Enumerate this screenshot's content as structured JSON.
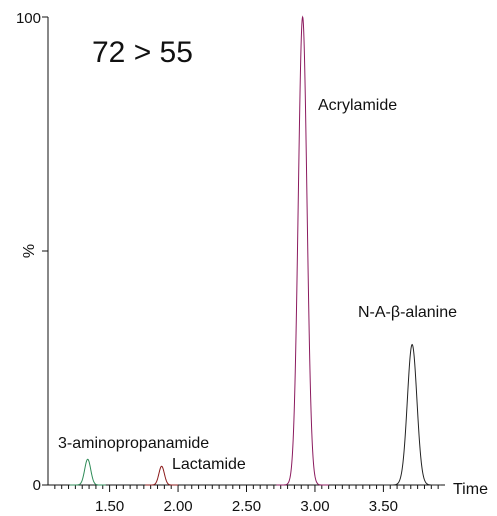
{
  "chart_data": {
    "type": "line",
    "title": "72 > 55",
    "xlabel": "Time",
    "ylabel": "%",
    "xlim": [
      1.05,
      3.95
    ],
    "ylim": [
      0,
      100
    ],
    "x_ticks": [
      1.5,
      2.0,
      2.5,
      3.0,
      3.5
    ],
    "x_tick_labels": [
      "1.50",
      "2.00",
      "2.50",
      "3.00",
      "3.50"
    ],
    "y_ticks": [
      0,
      50,
      100
    ],
    "y_tick_labels": [
      "0",
      "%",
      "100"
    ],
    "grid": false,
    "peaks": [
      {
        "label": "3-aminopropanamide",
        "rt": 1.34,
        "height": 5.5,
        "width": 0.022,
        "color": "#2e8b57"
      },
      {
        "label": "Lactamide",
        "rt": 1.88,
        "height": 4.0,
        "width": 0.02,
        "color": "#8b1a1a"
      },
      {
        "label": "Acrylamide",
        "rt": 2.91,
        "height": 100,
        "width": 0.032,
        "color": "#8b1a5e"
      },
      {
        "label": "N-A-β-alanine",
        "rt": 3.71,
        "height": 30,
        "width": 0.035,
        "color": "#222222"
      }
    ]
  }
}
